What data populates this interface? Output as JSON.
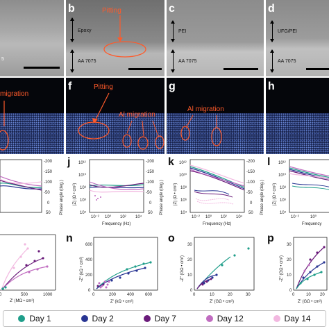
{
  "colors": {
    "day1": "#1f9e8a",
    "day2": "#283593",
    "day7": "#6a1b7a",
    "day12": "#c06cc0",
    "day14": "#f2b8e0",
    "annotation": "#ff5a2a"
  },
  "panels": {
    "sem": [
      {
        "letter": "",
        "layer_top": "",
        "layer_bottom": "5"
      },
      {
        "letter": "b",
        "layer_top": "Epoxy",
        "layer_bottom": "AA 7075",
        "annotation": "Pitting"
      },
      {
        "letter": "c",
        "layer_top": "PEI",
        "layer_bottom": "AA 7075"
      },
      {
        "letter": "d",
        "layer_top": "UFG/PEI",
        "layer_bottom": "AA 7075"
      }
    ],
    "eds": [
      {
        "letter": "",
        "annotation": "migration"
      },
      {
        "letter": "f",
        "annotation": "Pitting",
        "annotation2": "Al migration"
      },
      {
        "letter": "g",
        "annotation": "Al migration"
      },
      {
        "letter": "h",
        "annotation": ""
      }
    ],
    "bode": [
      {
        "letter": "",
        "xlabel": "",
        "ylabel": "",
        "right_label": "Phase angle (deg.)",
        "right_ticks": [
          "-200",
          "-150",
          "-100",
          "-50",
          "0",
          "50"
        ]
      },
      {
        "letter": "j",
        "xlabel": "Frequency (Hz)",
        "ylabel": "|Z| (Ω • cm²)",
        "right_label": "Phase angle (deg.)",
        "right_ticks": [
          "-200",
          "-150",
          "-100",
          "-50",
          "0",
          "50"
        ],
        "left_ticks": [
          "10¹²",
          "10¹⁰",
          "10⁸",
          "10⁶",
          "10⁴"
        ],
        "x_ticks": [
          "10⁻²",
          "10⁰",
          "10²",
          "10⁴"
        ]
      },
      {
        "letter": "k",
        "xlabel": "Frequency (Hz)",
        "ylabel": "|Z| (Ω • cm²)",
        "right_label": "Phase angle (deg.)",
        "right_ticks": [
          "-200",
          "-150",
          "-100",
          "-50",
          "0",
          "50"
        ],
        "left_ticks": [
          "10¹²",
          "10¹⁰",
          "10⁸",
          "10⁶",
          "10⁴"
        ],
        "x_ticks": [
          "10⁻²",
          "10⁰",
          "10²",
          "10⁴"
        ]
      },
      {
        "letter": "l",
        "xlabel": "Frequency",
        "ylabel": "|Z| (Ω • cm²)",
        "left_ticks": [
          "10¹²",
          "10¹⁰",
          "10⁸",
          "10⁶",
          "10⁴"
        ],
        "x_ticks": [
          "10⁻²",
          "10⁰"
        ]
      }
    ],
    "nyquist": [
      {
        "letter": "",
        "xlabel": "Z' (MΩ • cm²)",
        "x_ticks": [
          "0",
          "500",
          "1000"
        ]
      },
      {
        "letter": "n",
        "xlabel": "Z' (kΩ • cm²)",
        "ylabel": "-Z\" (kΩ • cm²)",
        "x_ticks": [
          "0",
          "200",
          "400",
          "600"
        ],
        "y_ticks": [
          "0",
          "200",
          "400",
          "600"
        ]
      },
      {
        "letter": "o",
        "xlabel": "Z' (GΩ • cm²)",
        "ylabel": "-Z\" (GΩ • cm²)",
        "x_ticks": [
          "0",
          "10",
          "20",
          "30"
        ],
        "y_ticks": [
          "0",
          "10",
          "20",
          "30"
        ]
      },
      {
        "letter": "p",
        "xlabel": "Z' (GΩ • cm²)",
        "ylabel": "-Z\" (GΩ • cm²)",
        "x_ticks": [
          "0",
          "10",
          "20"
        ],
        "y_ticks": [
          "0",
          "10",
          "20",
          "30"
        ]
      }
    ]
  },
  "legend": [
    {
      "label": "Day 1",
      "color": "#1f9e8a"
    },
    {
      "label": "Day 2",
      "color": "#283593"
    },
    {
      "label": "Day 7",
      "color": "#6a1b7a"
    },
    {
      "label": "Day 12",
      "color": "#c06cc0"
    },
    {
      "label": "Day 14",
      "color": "#f2b8e0"
    }
  ]
}
